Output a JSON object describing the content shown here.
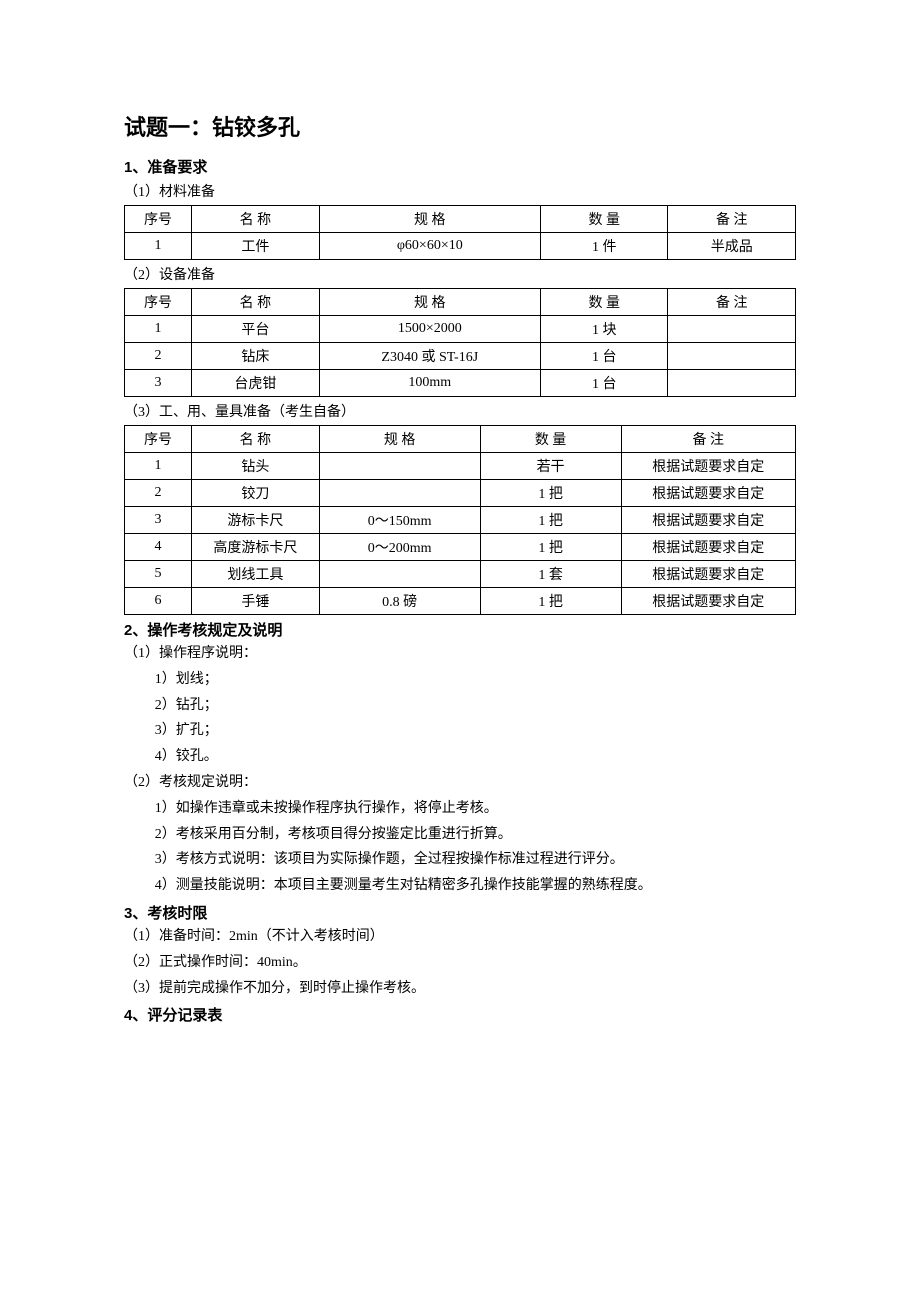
{
  "title": "试题一：钻铰多孔",
  "s1": {
    "title": "1、准备要求",
    "sub1": {
      "title": "（1）材料准备",
      "headers": [
        "序号",
        "名 称",
        "规 格",
        "数 量",
        "备 注"
      ],
      "rows": [
        {
          "no": "1",
          "name": "工件",
          "spec": "φ60×60×10",
          "qty": "1 件",
          "note": "半成品"
        }
      ]
    },
    "sub2": {
      "title": "（2）设备准备",
      "headers": [
        "序号",
        "名 称",
        "规 格",
        "数 量",
        "备 注"
      ],
      "rows": [
        {
          "no": "1",
          "name": "平台",
          "spec": "1500×2000",
          "qty": "1 块",
          "note": ""
        },
        {
          "no": "2",
          "name": "钻床",
          "spec": "Z3040 或 ST-16J",
          "qty": "1 台",
          "note": ""
        },
        {
          "no": "3",
          "name": "台虎钳",
          "spec": "100mm",
          "qty": "1 台",
          "note": ""
        }
      ]
    },
    "sub3": {
      "title": "（3）工、用、量具准备（考生自备）",
      "headers": [
        "序号",
        "名 称",
        "规 格",
        "数 量",
        "备 注"
      ],
      "rows": [
        {
          "no": "1",
          "name": "钻头",
          "spec": "",
          "qty": "若干",
          "note": "根据试题要求自定"
        },
        {
          "no": "2",
          "name": "铰刀",
          "spec": "",
          "qty": "1 把",
          "note": "根据试题要求自定"
        },
        {
          "no": "3",
          "name": "游标卡尺",
          "spec": "0～150mm",
          "qty": "1 把",
          "note": "根据试题要求自定"
        },
        {
          "no": "4",
          "name": "高度游标卡尺",
          "spec": "0～200mm",
          "qty": "1 把",
          "note": "根据试题要求自定"
        },
        {
          "no": "5",
          "name": "划线工具",
          "spec": "",
          "qty": "1 套",
          "note": "根据试题要求自定"
        },
        {
          "no": "6",
          "name": "手锤",
          "spec": "0.8 磅",
          "qty": "1 把",
          "note": "根据试题要求自定"
        }
      ]
    }
  },
  "s2": {
    "title": "2、操作考核规定及说明",
    "p1": {
      "title": "（1）操作程序说明：",
      "items": [
        "1）划线；",
        "2）钻孔；",
        "3）扩孔；",
        "4）铰孔。"
      ]
    },
    "p2": {
      "title": "（2）考核规定说明：",
      "items": [
        "1）如操作违章或未按操作程序执行操作，将停止考核。",
        "2）考核采用百分制，考核项目得分按鉴定比重进行折算。",
        "3）考核方式说明：该项目为实际操作题，全过程按操作标准过程进行评分。",
        "4）测量技能说明：本项目主要测量考生对钻精密多孔操作技能掌握的熟练程度。"
      ]
    }
  },
  "s3": {
    "title": "3、考核时限",
    "items": [
      "（1）准备时间：2min（不计入考核时间）",
      "（2）正式操作时间：40min。",
      "（3）提前完成操作不加分，到时停止操作考核。"
    ]
  },
  "s4": {
    "title": "4、评分记录表"
  },
  "layout": {
    "t1_cols_pct": [
      10,
      19,
      33,
      19,
      19
    ],
    "t2_cols_pct": [
      10,
      19,
      33,
      19,
      19
    ],
    "t3_cols_pct": [
      10,
      19,
      24,
      21,
      26
    ]
  }
}
